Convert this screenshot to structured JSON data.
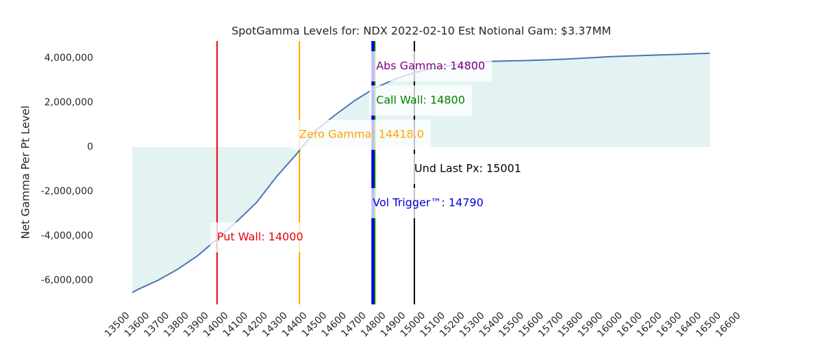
{
  "chart_data": {
    "type": "line",
    "title": "SpotGamma Levels for: NDX  2022-02-10 Est Notional Gam: $3.37MM",
    "ylabel": "Net Gamma Per Pt Level",
    "x": [
      13570,
      13600,
      13700,
      13800,
      13900,
      14000,
      14100,
      14200,
      14300,
      14400,
      14500,
      14600,
      14700,
      14800,
      14900,
      15000,
      15100,
      15200,
      15300,
      15400,
      15500,
      15600,
      15700,
      15800,
      15900,
      16000,
      16100,
      16200,
      16300,
      16400,
      16500
    ],
    "series": [
      {
        "color": "#4c72b0",
        "fill_color": "#e3f3f2",
        "values": [
          -6550000,
          -6400000,
          -6000000,
          -5500000,
          -4900000,
          -4150000,
          -3350000,
          -2500000,
          -1350000,
          -350000,
          750000,
          1450000,
          2100000,
          2650000,
          3050000,
          3350000,
          3550000,
          3700000,
          3800000,
          3860000,
          3880000,
          3900000,
          3930000,
          3970000,
          4020000,
          4070000,
          4100000,
          4130000,
          4160000,
          4190000,
          4220000
        ]
      }
    ],
    "levels": [
      {
        "label": "Put Wall: 14000",
        "value": 14000,
        "color": "#e8000b",
        "linewidth": 2
      },
      {
        "label": "Zero Gamma: 14418.0",
        "value": 14418,
        "color": "#ffa500",
        "linewidth": 2
      },
      {
        "label": "Abs Gamma: 14800",
        "value": 14800,
        "color": "#800080",
        "linewidth": 2
      },
      {
        "label": "Vol Trigger™: 14790",
        "value": 14790,
        "color": "#0000dd",
        "linewidth": 4
      },
      {
        "label": "Call Wall: 14800",
        "value": 14800,
        "color": "#008000",
        "linewidth": 2
      },
      {
        "label": "Und Last Px: 15001",
        "value": 15001,
        "color": "#000000",
        "linewidth": 2
      }
    ],
    "xlim": [
      13500,
      16600
    ],
    "ylim": [
      -7080000,
      4770000
    ],
    "xticks": [
      13500,
      13600,
      13700,
      13800,
      13900,
      14000,
      14100,
      14200,
      14300,
      14400,
      14500,
      14600,
      14700,
      14800,
      14900,
      15000,
      15100,
      15200,
      15300,
      15400,
      15500,
      15600,
      15700,
      15800,
      15900,
      16000,
      16100,
      16200,
      16300,
      16400,
      16500,
      16600
    ],
    "yticks": [
      {
        "value": -6000000,
        "label": "-6,000,000"
      },
      {
        "value": -4000000,
        "label": "-4,000,000"
      },
      {
        "value": -2000000,
        "label": "-2,000,000"
      },
      0,
      {
        "value": 2000000,
        "label": "2,000,000"
      },
      {
        "value": 4000000,
        "label": "4,000,000"
      }
    ],
    "grid": false
  }
}
